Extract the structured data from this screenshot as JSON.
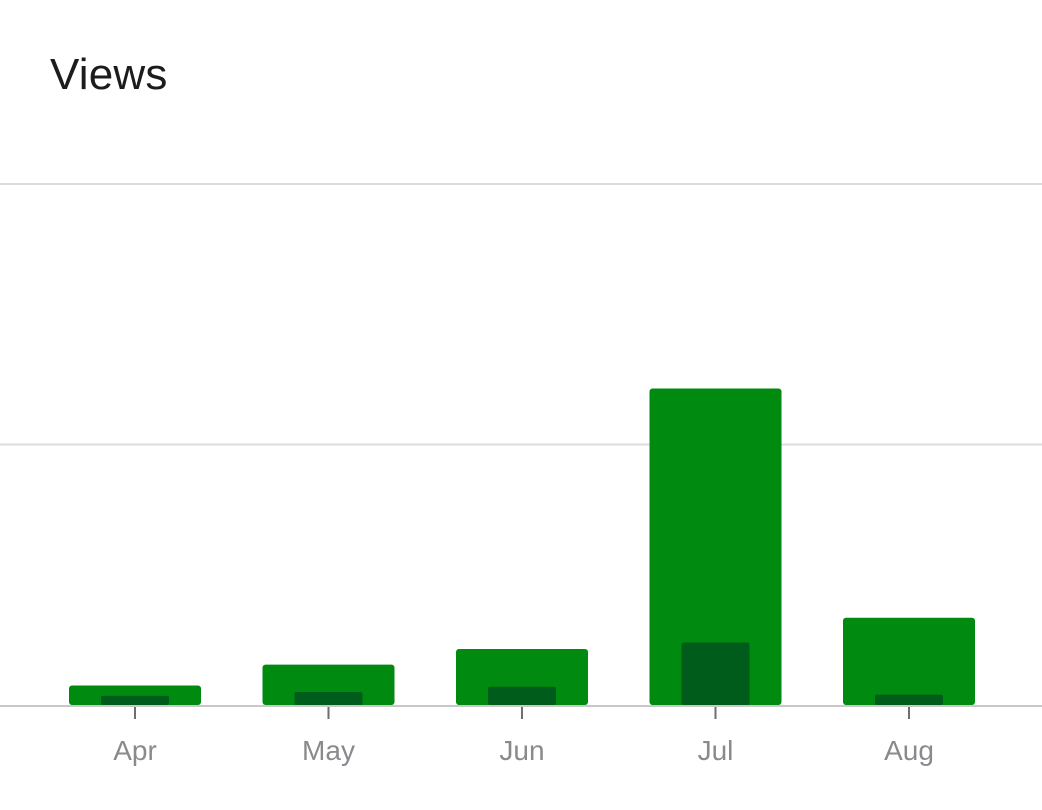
{
  "header": {
    "title": "Views"
  },
  "chart_data": {
    "type": "bar",
    "title": "Views",
    "xlabel": "",
    "ylabel": "",
    "categories": [
      "Apr",
      "May",
      "Jun",
      "Jul",
      "Aug"
    ],
    "series": [
      {
        "values": [
          7.5,
          15.5,
          21.5,
          121.5,
          33.5
        ],
        "color": "#008a10"
      },
      {
        "values": [
          3.5,
          5,
          7,
          24,
          4
        ],
        "color": "#005c1b"
      }
    ],
    "ylim": [
      0,
      200
    ],
    "gridlines": [
      0,
      100,
      200
    ],
    "grid": true,
    "legend": "none",
    "colors": {
      "gridline": "#dcdcde",
      "axis": "#c8c8cc",
      "tick": "#6e6e73",
      "tick_label": "#8a8a8e"
    }
  }
}
